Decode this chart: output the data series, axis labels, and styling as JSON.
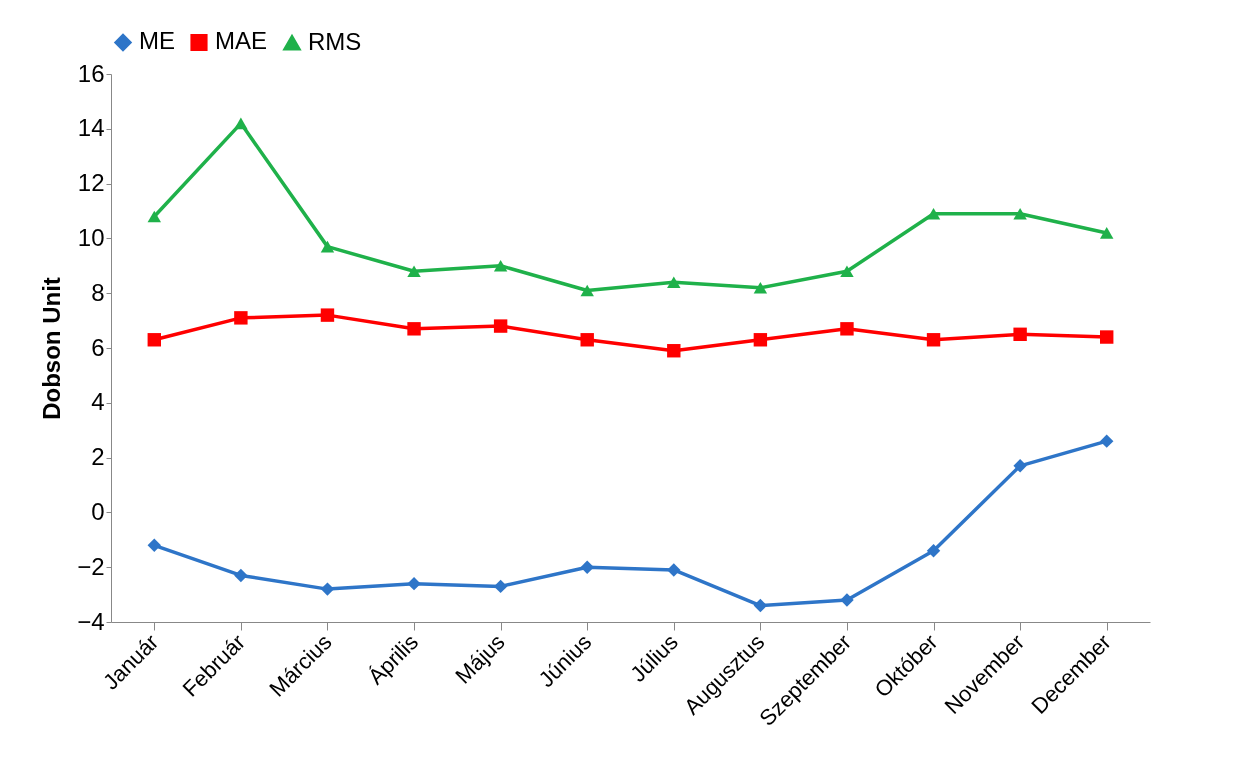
{
  "chart_data": {
    "type": "line",
    "ylabel": "Dobson Unit",
    "categories": [
      "Január",
      "Február",
      "Március",
      "Április",
      "Május",
      "Június",
      "Július",
      "Augusztus",
      "Szeptember",
      "Október",
      "November",
      "December"
    ],
    "series": [
      {
        "name": "ME",
        "color": "#2e75c8",
        "marker": "diamond",
        "values": [
          -1.2,
          -2.3,
          -2.8,
          -2.6,
          -2.7,
          -2.0,
          -2.1,
          -3.4,
          -3.2,
          -1.4,
          1.7,
          2.6
        ]
      },
      {
        "name": "MAE",
        "color": "#ff0000",
        "marker": "square",
        "values": [
          6.3,
          7.1,
          7.2,
          6.7,
          6.8,
          6.3,
          5.9,
          6.3,
          6.7,
          6.3,
          6.5,
          6.4
        ]
      },
      {
        "name": "RMS",
        "color": "#1fb14a",
        "marker": "triangle",
        "values": [
          10.8,
          14.2,
          9.7,
          8.8,
          9.0,
          8.1,
          8.4,
          8.2,
          8.8,
          10.9,
          10.9,
          10.2
        ]
      }
    ],
    "ylim": [
      -4,
      16
    ],
    "yticks": [
      -4,
      -2,
      0,
      2,
      4,
      6,
      8,
      10,
      12,
      14,
      16
    ],
    "grid": false,
    "legend": "top",
    "line_style": "solid"
  }
}
